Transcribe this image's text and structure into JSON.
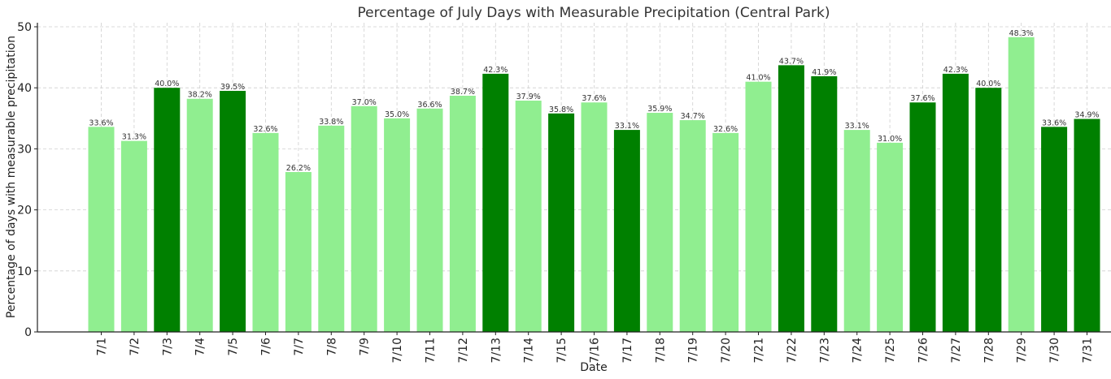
{
  "chart_data": {
    "type": "bar",
    "title": "Percentage of July Days with Measurable Precipitation (Central Park)",
    "xlabel": "Date",
    "ylabel": "Percentage of days with measurable precipitation",
    "ylim": [
      0,
      50
    ],
    "yticks": [
      0,
      10,
      20,
      30,
      40,
      50
    ],
    "grid": true,
    "categories": [
      "7/1",
      "7/2",
      "7/3",
      "7/4",
      "7/5",
      "7/6",
      "7/7",
      "7/8",
      "7/9",
      "7/10",
      "7/11",
      "7/12",
      "7/13",
      "7/14",
      "7/15",
      "7/16",
      "7/17",
      "7/18",
      "7/19",
      "7/20",
      "7/21",
      "7/22",
      "7/23",
      "7/24",
      "7/25",
      "7/26",
      "7/27",
      "7/28",
      "7/29",
      "7/30",
      "7/31"
    ],
    "values": [
      33.6,
      31.3,
      40.0,
      38.2,
      39.5,
      32.6,
      26.2,
      33.8,
      37.0,
      35.0,
      36.6,
      38.7,
      42.3,
      37.9,
      35.8,
      37.6,
      33.1,
      35.9,
      34.7,
      32.6,
      41.0,
      43.7,
      41.9,
      33.1,
      31.0,
      37.6,
      42.3,
      40.0,
      48.3,
      33.6,
      34.9
    ],
    "data_labels": [
      "33.6%",
      "31.3%",
      "40.0%",
      "38.2%",
      "39.5%",
      "32.6%",
      "26.2%",
      "33.8%",
      "37.0%",
      "35.0%",
      "36.6%",
      "38.7%",
      "42.3%",
      "37.9%",
      "35.8%",
      "37.6%",
      "33.1%",
      "35.9%",
      "34.7%",
      "32.6%",
      "41.0%",
      "43.7%",
      "41.9%",
      "33.1%",
      "31.0%",
      "37.6%",
      "42.3%",
      "40.0%",
      "48.3%",
      "33.6%",
      "34.9%"
    ],
    "highlight": [
      false,
      false,
      true,
      false,
      true,
      false,
      false,
      false,
      false,
      false,
      false,
      false,
      true,
      false,
      true,
      false,
      true,
      false,
      false,
      false,
      false,
      true,
      true,
      false,
      false,
      true,
      true,
      true,
      false,
      true,
      true
    ],
    "colors": {
      "bar": "#90ee90",
      "highlight": "#008000"
    }
  }
}
